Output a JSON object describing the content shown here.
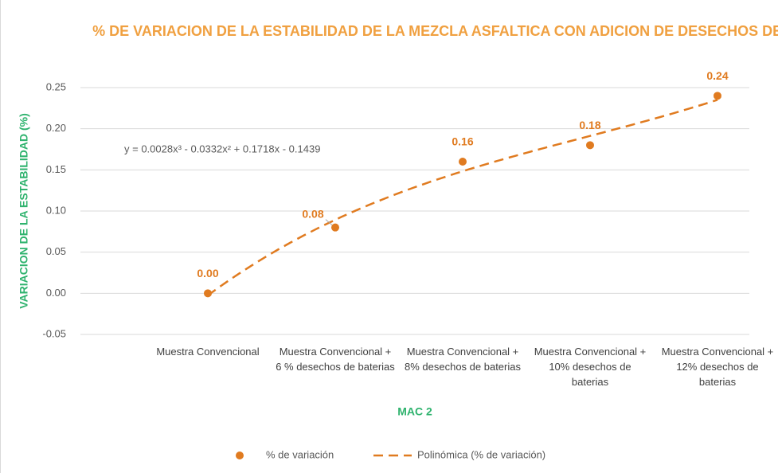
{
  "chart_data": {
    "type": "scatter",
    "title": "% DE VARIACION DE LA ESTABILIDAD DE LA MEZCLA ASFALTICA CON ADICION DE DESECHOS DE BATERIAS",
    "x_label": "MAC 2",
    "y_label": "VARIACION DE LA ESTABILIDAD (%)",
    "categories": [
      "Muestra Convencional",
      "Muestra Convencional + 6 % desechos de baterias",
      "Muestra Convencional + 8% desechos de baterias",
      "Muestra Convencional + 10% desechos de baterias",
      "Muestra Convencional + 12% desechos de baterias"
    ],
    "series": [
      {
        "name": "% de variación",
        "color": "#e07b20",
        "values": [
          0.0,
          0.08,
          0.16,
          0.18,
          0.24
        ],
        "value_labels": [
          "0.00",
          "0.08",
          "0.16",
          "0.18",
          "0.24"
        ]
      }
    ],
    "trendline": {
      "name": "Polinómica (% de variación)",
      "color": "#e07b20",
      "equation": "y = 0.0028x³ - 0.0332x² + 0.1718x - 0.1439",
      "coefficients": [
        0.0028,
        -0.0332,
        0.1718,
        -0.1439
      ]
    },
    "ylim": [
      -0.05,
      0.25
    ],
    "yticks": [
      -0.05,
      {
        "value": 0,
        "label": "0.00"
      },
      0.05,
      {
        "value": 0.1,
        "label": "0.10"
      },
      0.15,
      {
        "value": 0.2,
        "label": "0.20"
      },
      0.25
    ],
    "grid": true,
    "legend": "bottom"
  }
}
